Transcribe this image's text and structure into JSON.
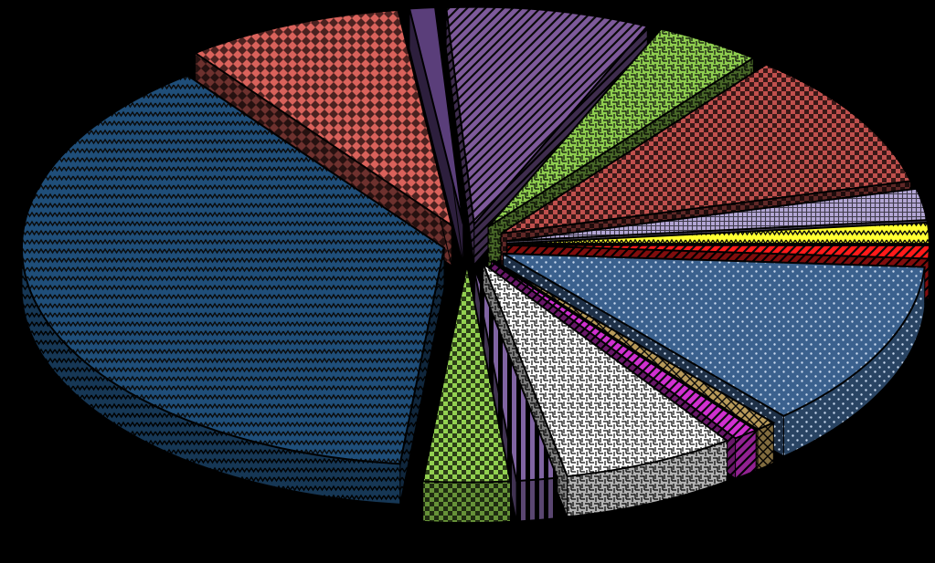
{
  "chart_data": {
    "type": "pie",
    "style": "3d-exploded-patterned",
    "title": "",
    "legend": "none",
    "data_labels": "none",
    "slices": [
      {
        "value": 39.0,
        "color": "#1f4e79",
        "pattern": "zigzag"
      },
      {
        "value": 8.6,
        "color": "#d9625b",
        "pattern": "diamonds"
      },
      {
        "value": 1.0,
        "color": "#5a3e7a",
        "pattern": "solid"
      },
      {
        "value": 8.0,
        "color": "#7e5a9b",
        "pattern": "diagonal"
      },
      {
        "value": 4.2,
        "color": "#8fce4f",
        "pattern": "weave"
      },
      {
        "value": 10.6,
        "color": "#c0504d",
        "pattern": "checker"
      },
      {
        "value": 2.4,
        "color": "#b4a7d6",
        "pattern": "grid"
      },
      {
        "value": 1.6,
        "color": "#ffff33",
        "pattern": "zigzag"
      },
      {
        "value": 1.0,
        "color": "#ff1a1a",
        "pattern": "diagonal"
      },
      {
        "value": 12.8,
        "color": "#4f81bd",
        "pattern": "dots"
      },
      {
        "value": 0.8,
        "color": "#b89a5a",
        "pattern": "crosshatch"
      },
      {
        "value": 1.0,
        "color": "#d030d0",
        "pattern": "diagonal"
      },
      {
        "value": 6.8,
        "color": "#ffffff",
        "pattern": "weave"
      },
      {
        "value": 1.6,
        "color": "#8064a2",
        "pattern": "vertical"
      },
      {
        "value": 3.4,
        "color": "#92d050",
        "pattern": "checker"
      }
    ]
  }
}
